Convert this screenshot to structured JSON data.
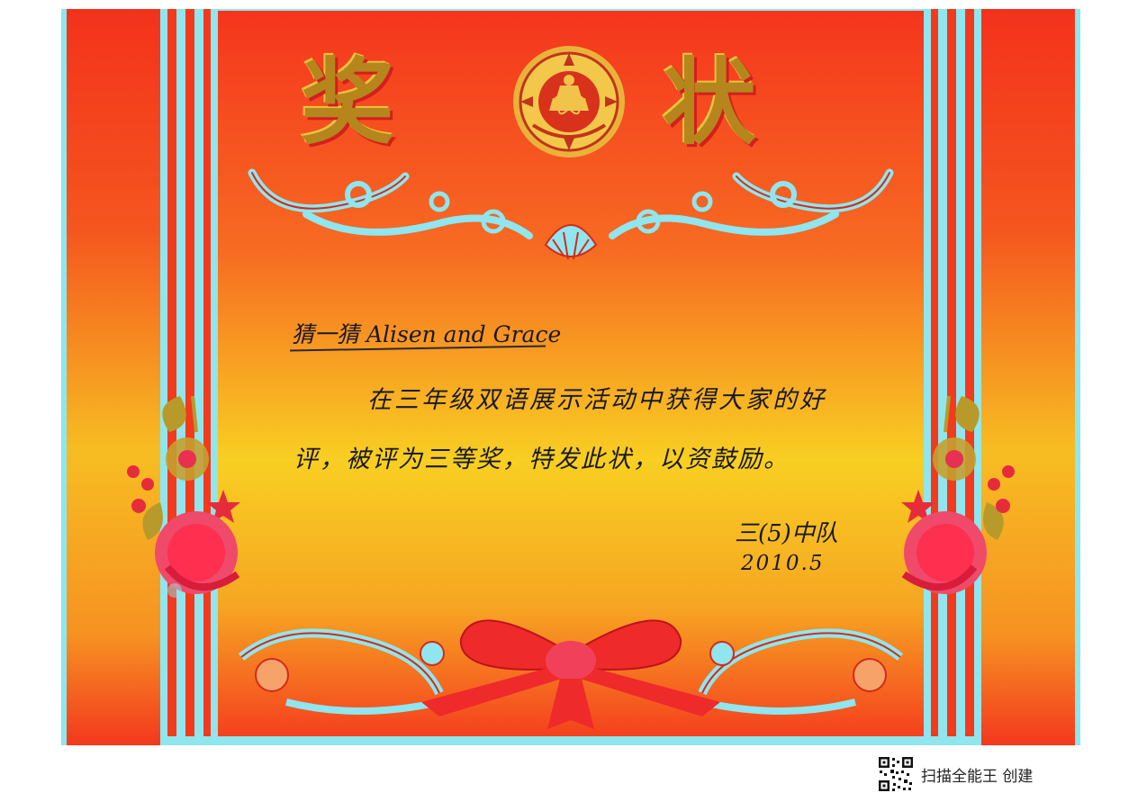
{
  "certificate": {
    "title_left": "奖",
    "title_right": "状",
    "recipient": "猜一猜 Alisen and Grace",
    "body_line_1": "在三年级双语展示活动中获得大家的好",
    "body_line_2": "评，被评为三等奖，特发此状，以资鼓励。",
    "signature": "三(5)中队",
    "date": "2010.5",
    "emblem": "national-emblem-icon"
  },
  "footer": {
    "qr_icon": "qr-code-icon",
    "scanner_label": "扫描全能王 创建"
  },
  "colors": {
    "border_cyan": "#8fe6ee",
    "red": "#f03a1c",
    "gold": "#b4861c",
    "yellow": "#f7d221"
  }
}
